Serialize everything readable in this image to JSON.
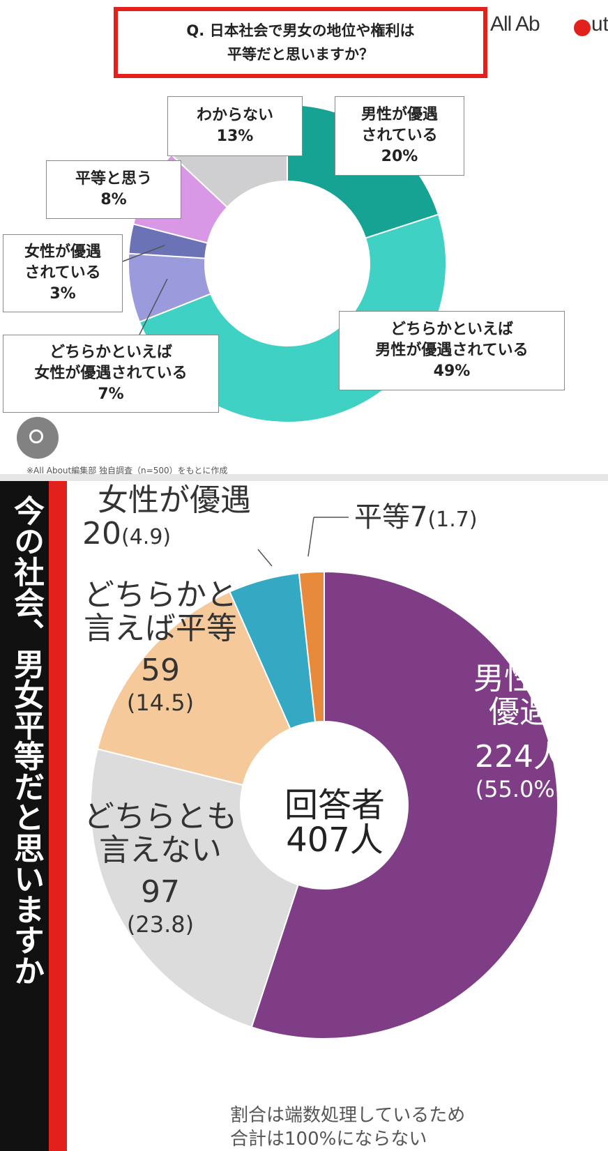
{
  "panel1": {
    "question": "Q. 日本社会で男女の地位や権利は\n平等だと思いますか？",
    "brand_left": "All Ab",
    "brand_right": "ut",
    "footnote": "※All About編集部 独自調査（n=500）をもとに作成",
    "colors": {
      "frame": "#e3211c"
    },
    "chart_data": {
      "type": "pie",
      "donut": true,
      "unit": "%",
      "slices": [
        {
          "label": "男性が優遇\nされている",
          "value": 20,
          "color": "#16a394"
        },
        {
          "label": "どちらかといえば\n男性が優遇されている",
          "value": 49,
          "color": "#3ed1c4"
        },
        {
          "label": "どちらかといえば\n女性が優遇されている",
          "value": 7,
          "color": "#9a9add"
        },
        {
          "label": "女性が優遇\nされている",
          "value": 3,
          "color": "#6b72b6"
        },
        {
          "label": "平等と思う",
          "value": 8,
          "color": "#d998e6"
        },
        {
          "label": "わからない",
          "value": 13,
          "color": "#cfcfd2"
        }
      ]
    }
  },
  "panel2": {
    "side_title": "今の社会、男女平等だと思いますか",
    "center_label": "回答者\n407人",
    "footnote": "割合は端数処理しているため\n合計は100%にならない",
    "colors": {
      "bar_black": "#111111",
      "bar_red": "#e3211c"
    },
    "chart_data": {
      "type": "pie",
      "donut": true,
      "total": 407,
      "unit": "人",
      "slices": [
        {
          "label": "男性が\n優遇",
          "count_text": "224人",
          "pct_text": "(55.0%)",
          "value": 224,
          "pct": 55.0,
          "color": "#7f3d86"
        },
        {
          "label": "どちらとも\n言えない",
          "count_text": "97",
          "pct_text": "(23.8)",
          "value": 97,
          "pct": 23.8,
          "color": "#dcdcdc"
        },
        {
          "label": "どちらかと\n言えば平等",
          "count_text": "59",
          "pct_text": "(14.5)",
          "value": 59,
          "pct": 14.5,
          "color": "#f5c99a"
        },
        {
          "label": "女性が優遇",
          "count_text": "20",
          "pct_text": "(4.9)",
          "value": 20,
          "pct": 4.9,
          "color": "#35a9c4"
        },
        {
          "label": "平等",
          "count_text": "7",
          "pct_text": "(1.7)",
          "value": 7,
          "pct": 1.7,
          "color": "#e78a3b"
        }
      ]
    }
  }
}
